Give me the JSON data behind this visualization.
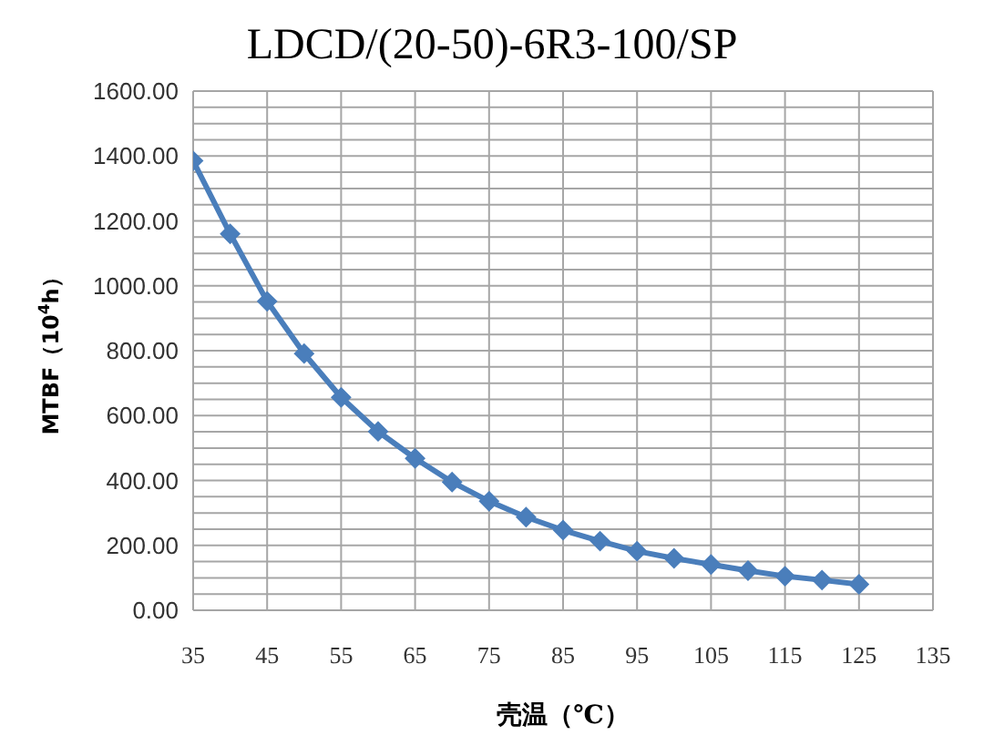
{
  "chart_data": {
    "type": "line",
    "title": "LDCD/(20-50)-6R3-100/SP",
    "xlabel": "壳温（℃）",
    "ylabel": "MTBF（10$^{4}$h）",
    "x": [
      35,
      40,
      45,
      50,
      55,
      60,
      65,
      70,
      75,
      80,
      85,
      90,
      95,
      100,
      105,
      110,
      115,
      120,
      125
    ],
    "series": [
      {
        "color": "#4a7ebb",
        "values": [
          1385,
          1160,
          952,
          791,
          656,
          551,
          468,
          395,
          336,
          287,
          247,
          213,
          182,
          160,
          141,
          122,
          105,
          93,
          80
        ]
      }
    ],
    "xlim": [
      35,
      135
    ],
    "xticks": [
      35,
      45,
      55,
      65,
      75,
      85,
      95,
      105,
      115,
      125,
      135
    ],
    "ylim": [
      0,
      1600
    ],
    "yticks": [
      {
        "value": 0,
        "label": "0.00"
      },
      {
        "value": 50,
        "label": null
      },
      {
        "value": 100,
        "label": null
      },
      {
        "value": 150,
        "label": null
      },
      {
        "value": 200,
        "label": "200.00"
      },
      {
        "value": 250,
        "label": null
      },
      {
        "value": 300,
        "label": null
      },
      {
        "value": 350,
        "label": null
      },
      {
        "value": 400,
        "label": "400.00"
      },
      {
        "value": 450,
        "label": null
      },
      {
        "value": 500,
        "label": null
      },
      {
        "value": 550,
        "label": null
      },
      {
        "value": 600,
        "label": "600.00"
      },
      {
        "value": 650,
        "label": null
      },
      {
        "value": 700,
        "label": null
      },
      {
        "value": 750,
        "label": null
      },
      {
        "value": 800,
        "label": "800.00"
      },
      {
        "value": 850,
        "label": null
      },
      {
        "value": 900,
        "label": null
      },
      {
        "value": 950,
        "label": null
      },
      {
        "value": 1000,
        "label": "1000.00"
      },
      {
        "value": 1050,
        "label": null
      },
      {
        "value": 1100,
        "label": null
      },
      {
        "value": 1150,
        "label": null
      },
      {
        "value": 1200,
        "label": "1200.00"
      },
      {
        "value": 1250,
        "label": null
      },
      {
        "value": 1300,
        "label": null
      },
      {
        "value": 1350,
        "label": null
      },
      {
        "value": 1400,
        "label": "1400.00"
      },
      {
        "value": 1450,
        "label": null
      },
      {
        "value": 1500,
        "label": null
      },
      {
        "value": 1550,
        "label": null
      },
      {
        "value": 1600,
        "label": "1600.00"
      }
    ],
    "grid": true,
    "marker": "diamond",
    "line_style": "solid",
    "legend": false
  }
}
